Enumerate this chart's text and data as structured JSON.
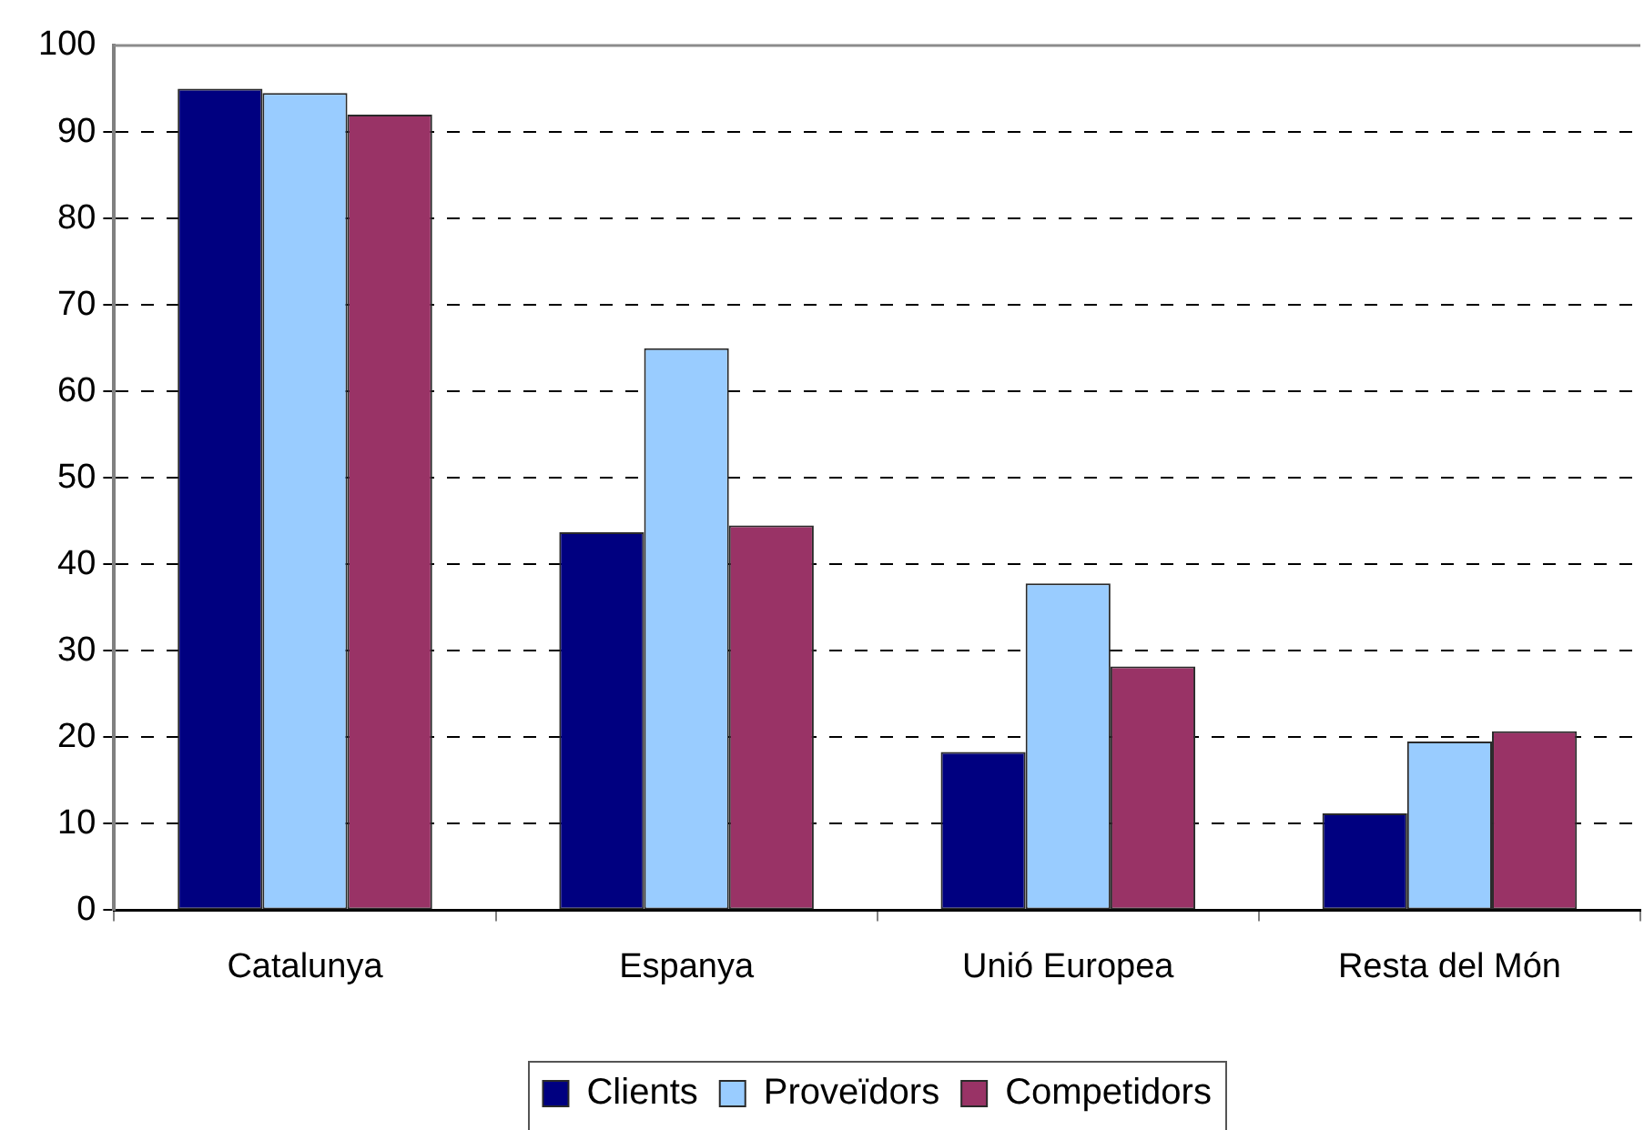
{
  "chart_data": {
    "type": "bar",
    "categories": [
      "Catalunya",
      "Espanya",
      "Unió Europea",
      "Resta del Món"
    ],
    "series": [
      {
        "name": "Clients",
        "color": "#000080",
        "values": [
          95,
          43.7,
          18.3,
          11.2
        ]
      },
      {
        "name": "Proveïdors",
        "color": "#99ccff",
        "values": [
          94.5,
          65,
          37.8,
          19.5
        ]
      },
      {
        "name": "Competidors",
        "color": "#993366",
        "values": [
          92,
          44.5,
          28.2,
          20.7
        ]
      }
    ],
    "ylim": [
      0,
      100
    ],
    "yticks": [
      0,
      10,
      20,
      30,
      40,
      50,
      60,
      70,
      80,
      90,
      100
    ],
    "grid": "y",
    "legend": "bottom"
  }
}
